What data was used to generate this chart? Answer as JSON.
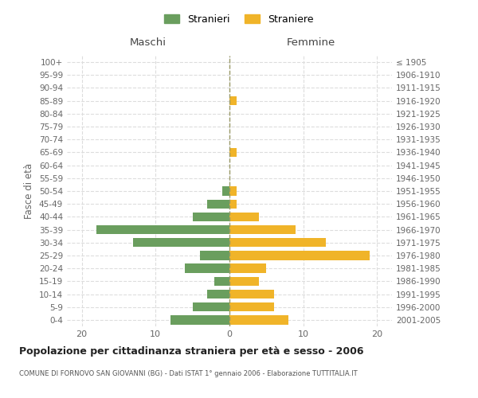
{
  "age_groups": [
    "0-4",
    "5-9",
    "10-14",
    "15-19",
    "20-24",
    "25-29",
    "30-34",
    "35-39",
    "40-44",
    "45-49",
    "50-54",
    "55-59",
    "60-64",
    "65-69",
    "70-74",
    "75-79",
    "80-84",
    "85-89",
    "90-94",
    "95-99",
    "100+"
  ],
  "birth_years": [
    "2001-2005",
    "1996-2000",
    "1991-1995",
    "1986-1990",
    "1981-1985",
    "1976-1980",
    "1971-1975",
    "1966-1970",
    "1961-1965",
    "1956-1960",
    "1951-1955",
    "1946-1950",
    "1941-1945",
    "1936-1940",
    "1931-1935",
    "1926-1930",
    "1921-1925",
    "1916-1920",
    "1911-1915",
    "1906-1910",
    "≤ 1905"
  ],
  "maschi": [
    8,
    5,
    3,
    2,
    6,
    4,
    13,
    18,
    5,
    3,
    1,
    0,
    0,
    0,
    0,
    0,
    0,
    0,
    0,
    0,
    0
  ],
  "femmine": [
    8,
    6,
    6,
    4,
    5,
    19,
    13,
    9,
    4,
    1,
    1,
    0,
    0,
    1,
    0,
    0,
    0,
    1,
    0,
    0,
    0
  ],
  "color_maschi": "#6a9e5e",
  "color_femmine": "#f0b429",
  "title_main": "Popolazione per cittadinanza straniera per età e sesso - 2006",
  "title_sub": "COMUNE DI FORNOVO SAN GIOVANNI (BG) - Dati ISTAT 1° gennaio 2006 - Elaborazione TUTTITALIA.IT",
  "xlabel_maschi": "Maschi",
  "xlabel_femmine": "Femmine",
  "ylabel_left": "Fasce di età",
  "legend_maschi": "Stranieri",
  "legend_femmine": "Straniere",
  "xlim": 22,
  "background_color": "#ffffff",
  "grid_color": "#dddddd"
}
